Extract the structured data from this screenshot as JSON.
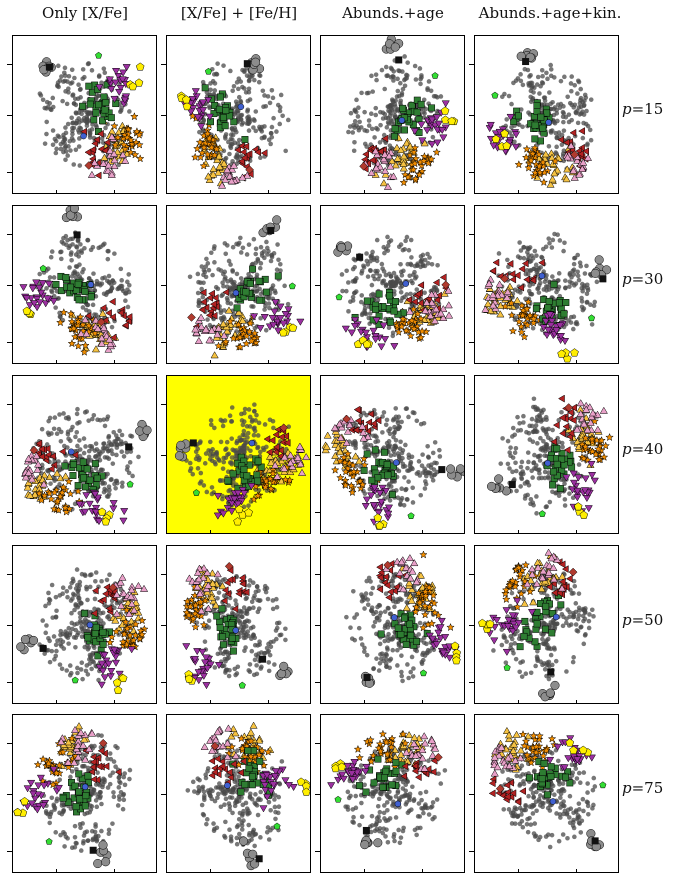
{
  "figure": {
    "columns": [
      "Only [X/Fe]",
      "[X/Fe] + [Fe/H]",
      "Abunds.+age",
      "Abunds.+age+kin."
    ],
    "rows": [
      {
        "prefix": "p",
        "value": "=15"
      },
      {
        "prefix": "p",
        "value": "=30"
      },
      {
        "prefix": "p",
        "value": "=40"
      },
      {
        "prefix": "p",
        "value": "=50"
      },
      {
        "prefix": "p",
        "value": "=75"
      }
    ],
    "highlight": {
      "row": 2,
      "col": 1,
      "color": "#ffff00"
    }
  },
  "chart_data": {
    "type": "scatter",
    "layout": "grid",
    "n_rows": 5,
    "n_cols": 4,
    "title": "",
    "xlabel": "",
    "ylabel": "",
    "grid": false,
    "groups": [
      {
        "color": "#4a4a4a",
        "marker": "circle-small",
        "role": "field"
      },
      {
        "color": "#8c8c8c",
        "marker": "circle-large"
      },
      {
        "color": "#f5c242",
        "marker": "triangle"
      },
      {
        "color": "#f08c00",
        "marker": "star"
      },
      {
        "color": "#2e7d32",
        "marker": "square"
      },
      {
        "color": "#b22222",
        "marker": "triangle-left"
      },
      {
        "color": "#9b30a0",
        "marker": "triangle-down"
      },
      {
        "color": "#e8a0c8",
        "marker": "triangle"
      },
      {
        "color": "#ffee00",
        "marker": "pentagon"
      },
      {
        "color": "#111111",
        "marker": "square-black"
      },
      {
        "color": "#4060d0",
        "marker": "circle-blue"
      },
      {
        "color": "#33dd33",
        "marker": "pentagon-green"
      },
      {
        "color": "#b03a2e",
        "marker": "diamond"
      }
    ]
  }
}
